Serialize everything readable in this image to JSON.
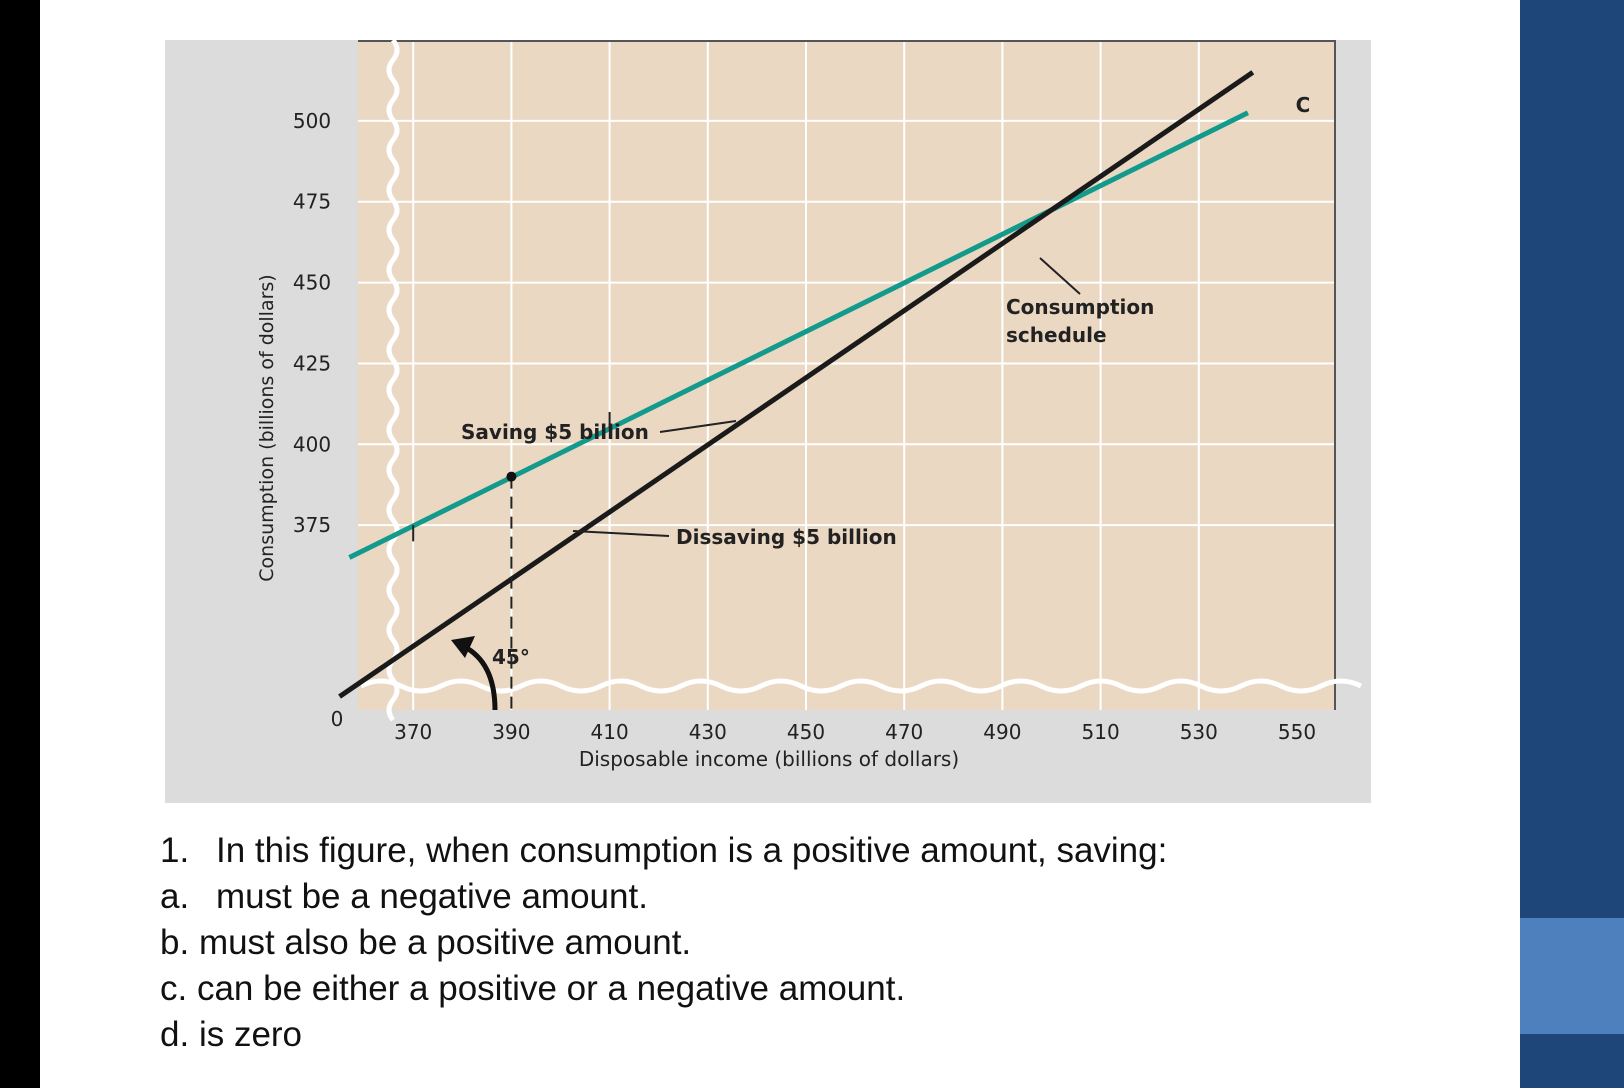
{
  "colors": {
    "plot_background": "#ead8c3",
    "panel_background": "#dcdcdc",
    "consumption_line": "#129a8c",
    "forty_five_line": "#1a1a1a",
    "sidebar": "#1f4678",
    "sidebar_accent": "#4d80bd"
  },
  "chart_data": {
    "type": "line",
    "title": "",
    "xlabel": "Disposable income (billions of dollars)",
    "ylabel": "Consumption (billions of dollars)",
    "x_ticks": [
      370,
      390,
      410,
      430,
      450,
      470,
      490,
      510,
      530,
      550
    ],
    "y_ticks": [
      375,
      400,
      425,
      450,
      475,
      500
    ],
    "origin_label": "0",
    "xlim": [
      350,
      550
    ],
    "ylim": [
      316,
      525
    ],
    "grid": true,
    "axis_breaks": true,
    "series": [
      {
        "name": "C",
        "role": "consumption",
        "x": [
          357,
          540
        ],
        "y": [
          365,
          502.5
        ]
      },
      {
        "name": "",
        "role": "45-degree",
        "x": [
          355,
          541
        ],
        "y": [
          322,
          515
        ]
      }
    ],
    "break_even_point": {
      "x": 390,
      "y": 390
    },
    "annotations": {
      "consumption_schedule": [
        "Consumption",
        "schedule"
      ],
      "saving": "Saving $5 billion",
      "dissaving": "Dissaving $5 billion",
      "angle": "45°"
    },
    "gap_markers": [
      {
        "x": 410,
        "y_low": 405,
        "y_high": 410
      },
      {
        "x": 370,
        "y_low": 370,
        "y_high": 375
      }
    ]
  },
  "question": {
    "stem_marker": "1.",
    "stem": "In this figure, when consumption is a positive amount, saving:",
    "options": [
      {
        "marker": "a.",
        "text": "must be a negative amount."
      },
      {
        "marker": "b.",
        "text": "must also be a positive amount."
      },
      {
        "marker": "c.",
        "text": "can be either a positive or a negative amount."
      },
      {
        "marker": "d.",
        "text": "is zero"
      }
    ]
  }
}
